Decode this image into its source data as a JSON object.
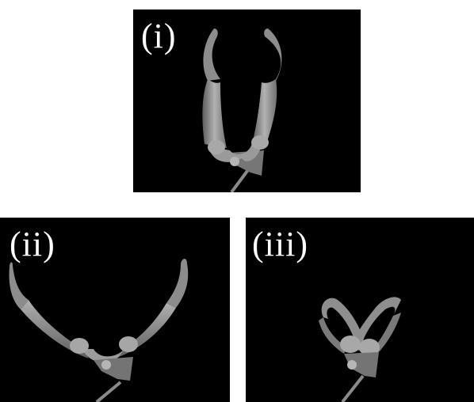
{
  "figure": {
    "panels": [
      {
        "label": "(i)",
        "state": "open"
      },
      {
        "label": "(ii)",
        "state": "wide-open"
      },
      {
        "label": "(iii)",
        "state": "closed"
      }
    ],
    "colors": {
      "background": "#000000",
      "label": "#ffffff",
      "device": "#8e8e8e"
    }
  }
}
